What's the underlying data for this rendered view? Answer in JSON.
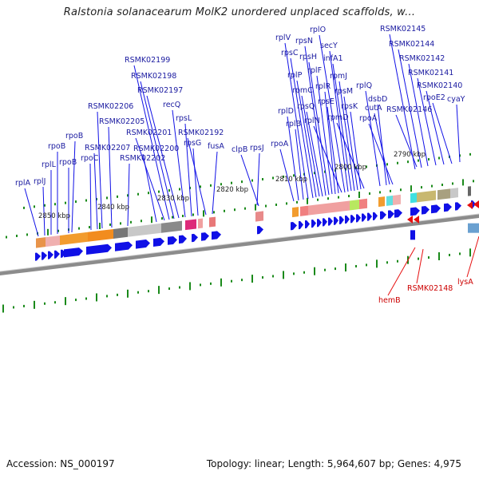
{
  "title": "Ralstonia solanacearum MolK2 unordered unplaced scaffolds, w...",
  "footer": {
    "accession": "Accession: NS_000197",
    "topology": "Topology: linear; Length: 5,964,607 bp; Genes: 4,975"
  },
  "colors": {
    "gene_forward": "#1010e6",
    "gene_reverse": "#e61010",
    "label_forward": "#1a1aa0",
    "label_reverse": "#cc0000",
    "tick": "#1a8a1a",
    "axis": "#888888"
  },
  "kbp_labels": [
    "2850 kbp",
    "2840 kbp",
    "2830 kbp",
    "2820 kbp",
    "2810 kbp",
    "2800 kbp",
    "2790 kbp"
  ],
  "forward_genes": [
    {
      "name": "rplA"
    },
    {
      "name": "rplJ"
    },
    {
      "name": "rplL"
    },
    {
      "name": "rpoB"
    },
    {
      "name": "rpoB"
    },
    {
      "name": "rpoB"
    },
    {
      "name": "rpoC"
    },
    {
      "name": "RSMK02207"
    },
    {
      "name": "RSMK02206"
    },
    {
      "name": "RSMK02205"
    },
    {
      "name": "RSMK02202"
    },
    {
      "name": "RSMK02200"
    },
    {
      "name": "RSMK02201"
    },
    {
      "name": "RSMK02199"
    },
    {
      "name": "RSMK02198"
    },
    {
      "name": "RSMK02197"
    },
    {
      "name": "recQ"
    },
    {
      "name": "rpsL"
    },
    {
      "name": "rpsG"
    },
    {
      "name": "RSMK02192"
    },
    {
      "name": "fusA"
    },
    {
      "name": "clpB"
    },
    {
      "name": "rpsJ"
    },
    {
      "name": "rpoA"
    },
    {
      "name": "rplD"
    },
    {
      "name": "rplB"
    },
    {
      "name": "rplV"
    },
    {
      "name": "rpsC"
    },
    {
      "name": "rplP"
    },
    {
      "name": "rpmC"
    },
    {
      "name": "rpsQ"
    },
    {
      "name": "rpsN"
    },
    {
      "name": "rpsH"
    },
    {
      "name": "rplF"
    },
    {
      "name": "rplR"
    },
    {
      "name": "rpsE"
    },
    {
      "name": "rplN"
    },
    {
      "name": "rplO"
    },
    {
      "name": "secY"
    },
    {
      "name": "infA1"
    },
    {
      "name": "rpmJ"
    },
    {
      "name": "rpsM"
    },
    {
      "name": "rpsK"
    },
    {
      "name": "rpmD"
    },
    {
      "name": "rplQ"
    },
    {
      "name": "dsbD"
    },
    {
      "name": "cutA"
    },
    {
      "name": "rpoA"
    },
    {
      "name": "RSMK02145"
    },
    {
      "name": "RSMK02144"
    },
    {
      "name": "RSMK02142"
    },
    {
      "name": "RSMK02141"
    },
    {
      "name": "RSMK02140"
    },
    {
      "name": "rpoE2"
    },
    {
      "name": "RSMK02146"
    },
    {
      "name": "cyaY"
    }
  ],
  "reverse_genes": [
    {
      "name": "hemB"
    },
    {
      "name": "RSMK02148"
    },
    {
      "name": "lysA"
    }
  ]
}
